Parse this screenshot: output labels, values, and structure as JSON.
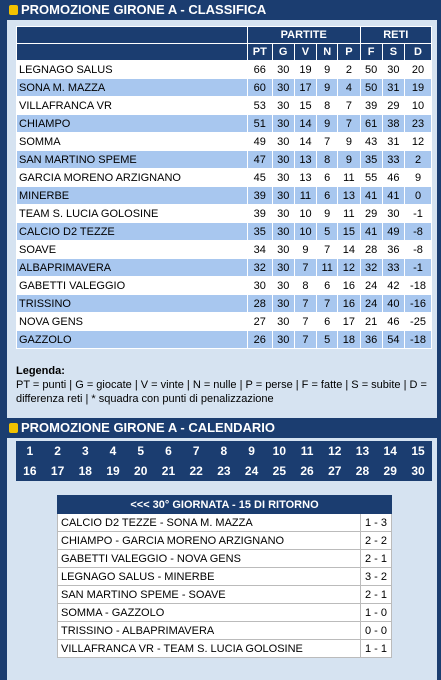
{
  "classifica": {
    "title": "PROMOZIONE GIRONE A - CLASSIFICA",
    "group_headers": [
      "PARTITE",
      "RETI"
    ],
    "columns": [
      "PT",
      "G",
      "V",
      "N",
      "P",
      "F",
      "S",
      "D"
    ],
    "rows": [
      [
        "LEGNAGO SALUS",
        66,
        30,
        19,
        9,
        2,
        50,
        30,
        20
      ],
      [
        "SONA M. MAZZA",
        60,
        30,
        17,
        9,
        4,
        50,
        31,
        19
      ],
      [
        "VILLAFRANCA VR",
        53,
        30,
        15,
        8,
        7,
        39,
        29,
        10
      ],
      [
        "CHIAMPO",
        51,
        30,
        14,
        9,
        7,
        61,
        38,
        23
      ],
      [
        "SOMMA",
        49,
        30,
        14,
        7,
        9,
        43,
        31,
        12
      ],
      [
        "SAN MARTINO SPEME",
        47,
        30,
        13,
        8,
        9,
        35,
        33,
        2
      ],
      [
        "GARCIA MORENO ARZIGNANO",
        45,
        30,
        13,
        6,
        11,
        55,
        46,
        9
      ],
      [
        "MINERBE",
        39,
        30,
        11,
        6,
        13,
        41,
        41,
        0
      ],
      [
        "TEAM S. LUCIA GOLOSINE",
        39,
        30,
        10,
        9,
        11,
        29,
        30,
        -1
      ],
      [
        "CALCIO D2 TEZZE",
        35,
        30,
        10,
        5,
        15,
        41,
        49,
        -8
      ],
      [
        "SOAVE",
        34,
        30,
        9,
        7,
        14,
        28,
        36,
        -8
      ],
      [
        "ALBAPRIMAVERA",
        32,
        30,
        7,
        11,
        12,
        32,
        33,
        -1
      ],
      [
        "GABETTI VALEGGIO",
        30,
        30,
        8,
        6,
        16,
        24,
        42,
        -18
      ],
      [
        "TRISSINO",
        28,
        30,
        7,
        7,
        16,
        24,
        40,
        -16
      ],
      [
        "NOVA GENS",
        27,
        30,
        7,
        6,
        17,
        21,
        46,
        -25
      ],
      [
        "GAZZOLO",
        26,
        30,
        7,
        5,
        18,
        36,
        54,
        -18
      ]
    ],
    "legend_title": "Legenda:",
    "legend_text": "PT = punti | G = giocate | V = vinte | N = nulle | P = perse | F = fatte | S = subite | D = differenza reti | * squadra con punti di penalizzazione"
  },
  "calendario": {
    "title": "PROMOZIONE GIRONE A - CALENDARIO",
    "rounds": [
      1,
      2,
      3,
      4,
      5,
      6,
      7,
      8,
      9,
      10,
      11,
      12,
      13,
      14,
      15,
      16,
      17,
      18,
      19,
      20,
      21,
      22,
      23,
      24,
      25,
      26,
      27,
      28,
      29,
      30
    ],
    "round_title": "<<< 30° GIORNATA - 15 DI RITORNO",
    "matches": [
      [
        "CALCIO D2 TEZZE - SONA M. MAZZA",
        "1 - 3"
      ],
      [
        "CHIAMPO - GARCIA MORENO ARZIGNANO",
        "2 - 2"
      ],
      [
        "GABETTI VALEGGIO - NOVA GENS",
        "2 - 1"
      ],
      [
        "LEGNAGO SALUS - MINERBE",
        "3 - 2"
      ],
      [
        "SAN MARTINO SPEME - SOAVE",
        "2 - 1"
      ],
      [
        "SOMMA - GAZZOLO",
        "1 - 0"
      ],
      [
        "TRISSINO - ALBAPRIMAVERA",
        "0 - 0"
      ],
      [
        "VILLAFRANCA VR - TEAM S. LUCIA GOLOSINE",
        "1 - 1"
      ]
    ]
  }
}
